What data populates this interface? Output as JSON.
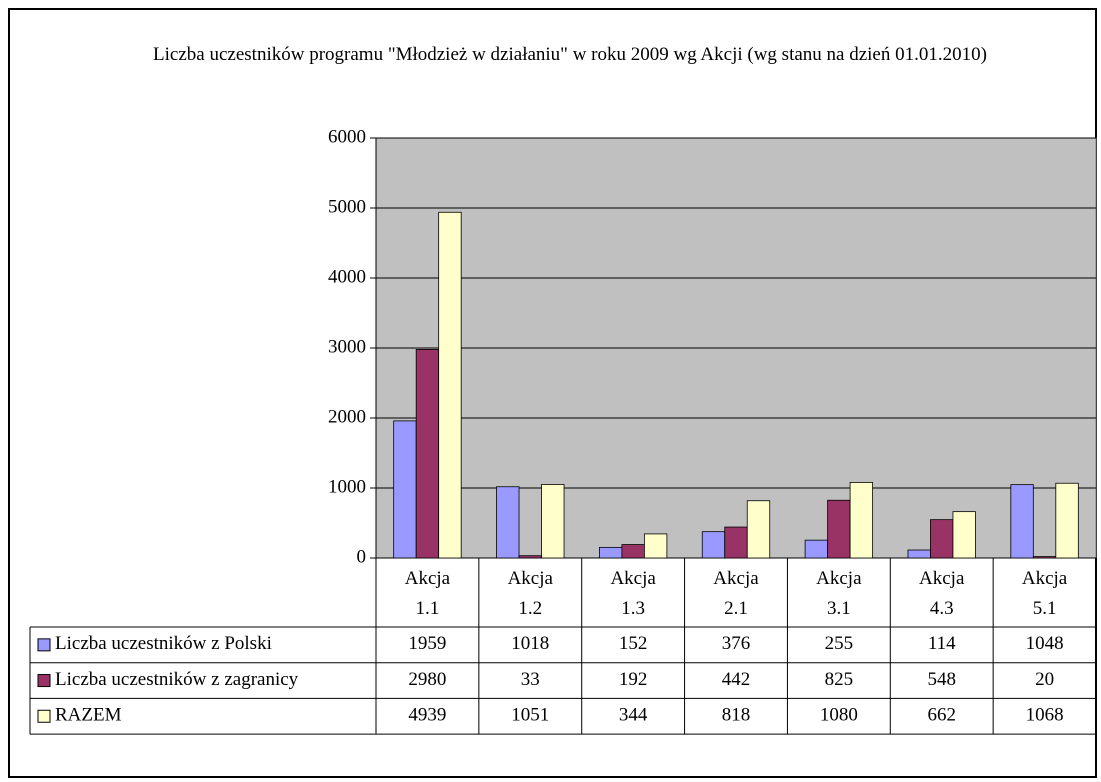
{
  "chart_data": {
    "type": "bar",
    "title": "Liczba uczestników programu \"Młodzież w działaniu\" w roku 2009 wg Akcji (wg stanu na dzień 01.01.2010)",
    "categories": [
      "Akcja 1.1",
      "Akcja 1.2",
      "Akcja 1.3",
      "Akcja 2.1",
      "Akcja 3.1",
      "Akcja 4.3",
      "Akcja 5.1"
    ],
    "series": [
      {
        "name": "Liczba uczestników z Polski",
        "color": "#9999ff",
        "values": [
          1959,
          1018,
          152,
          376,
          255,
          114,
          1048
        ]
      },
      {
        "name": "Liczba uczestników z zagranicy",
        "color": "#993366",
        "values": [
          2980,
          33,
          192,
          442,
          825,
          548,
          20
        ]
      },
      {
        "name": "RAZEM",
        "color": "#ffffcc",
        "values": [
          4939,
          1051,
          344,
          818,
          1080,
          662,
          1068
        ]
      }
    ],
    "ylim": [
      0,
      6000
    ],
    "yticks": [
      0,
      1000,
      2000,
      3000,
      4000,
      5000,
      6000
    ],
    "grid": true,
    "plot_background": "#c0c0c0"
  }
}
